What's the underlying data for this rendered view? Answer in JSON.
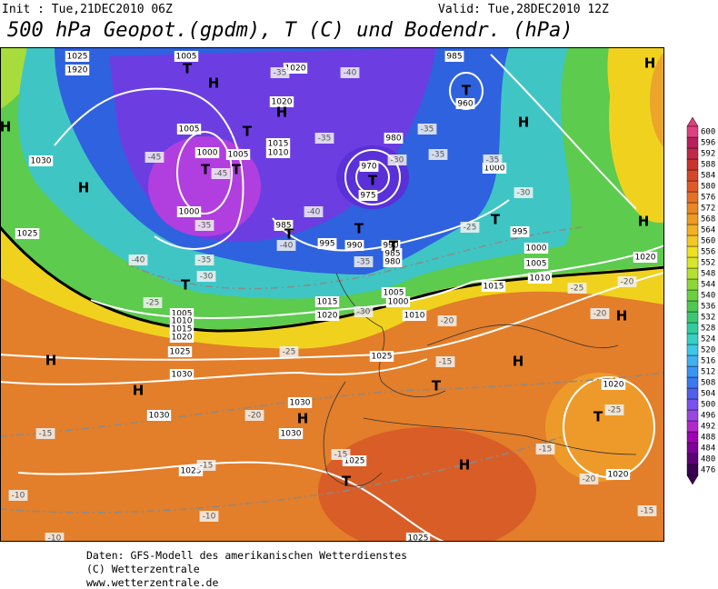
{
  "header": {
    "init": "Init : Tue,21DEC2010 06Z",
    "valid": "Valid: Tue,28DEC2010 12Z",
    "title": "500 hPa Geopot.(gpdm), T (C) und Bodendr. (hPa)"
  },
  "colorbar": {
    "levels": [
      476,
      480,
      484,
      488,
      492,
      496,
      500,
      504,
      508,
      512,
      516,
      520,
      524,
      528,
      532,
      536,
      540,
      544,
      548,
      552,
      556,
      560,
      564,
      568,
      572,
      576,
      580,
      584,
      588,
      592,
      596,
      600
    ]
  },
  "map_labels": [
    "1025",
    "1920",
    "1005",
    "1020",
    "985",
    "1020",
    "960",
    "1005",
    "1000",
    "1005",
    "1015",
    "1010",
    "980",
    "970",
    "975",
    "1030",
    "1000",
    "1000",
    "985",
    "995",
    "990",
    "990",
    "985",
    "980",
    "995",
    "1000",
    "1005",
    "1010",
    "1025",
    "1020",
    "1015",
    "1005",
    "1000",
    "1005",
    "1010",
    "1015",
    "1020",
    "1015",
    "1020",
    "1010",
    "1025",
    "1030",
    "1025",
    "1030",
    "1030",
    "1030",
    "1025",
    "1025",
    "1020",
    "1020",
    "1025",
    "-45",
    "-45",
    "-40",
    "-35",
    "-35",
    "-35",
    "-35",
    "-35",
    "-30",
    "-30",
    "-40",
    "-35",
    "-40",
    "-35",
    "-30",
    "-25",
    "-40",
    "-35",
    "-30",
    "-25",
    "-25",
    "-20",
    "-20",
    "-20",
    "-25",
    "-15",
    "-20",
    "-25",
    "-20",
    "-15",
    "-15",
    "-15",
    "-15",
    "-10",
    "-10",
    "-15",
    "-10",
    "H",
    "H",
    "H",
    "H",
    "T",
    "T",
    "T",
    "T",
    "H",
    "T",
    "T",
    "T",
    "T",
    "T",
    "T",
    "H",
    "T",
    "H",
    "H",
    "H",
    "H",
    "H",
    "T",
    "H",
    "T",
    "H",
    "T"
  ],
  "footer": [
    "Daten: GFS-Modell des amerikanischen Wetterdienstes",
    "(C) Wetterzentrale",
    "www.wetterzentrale.de"
  ]
}
